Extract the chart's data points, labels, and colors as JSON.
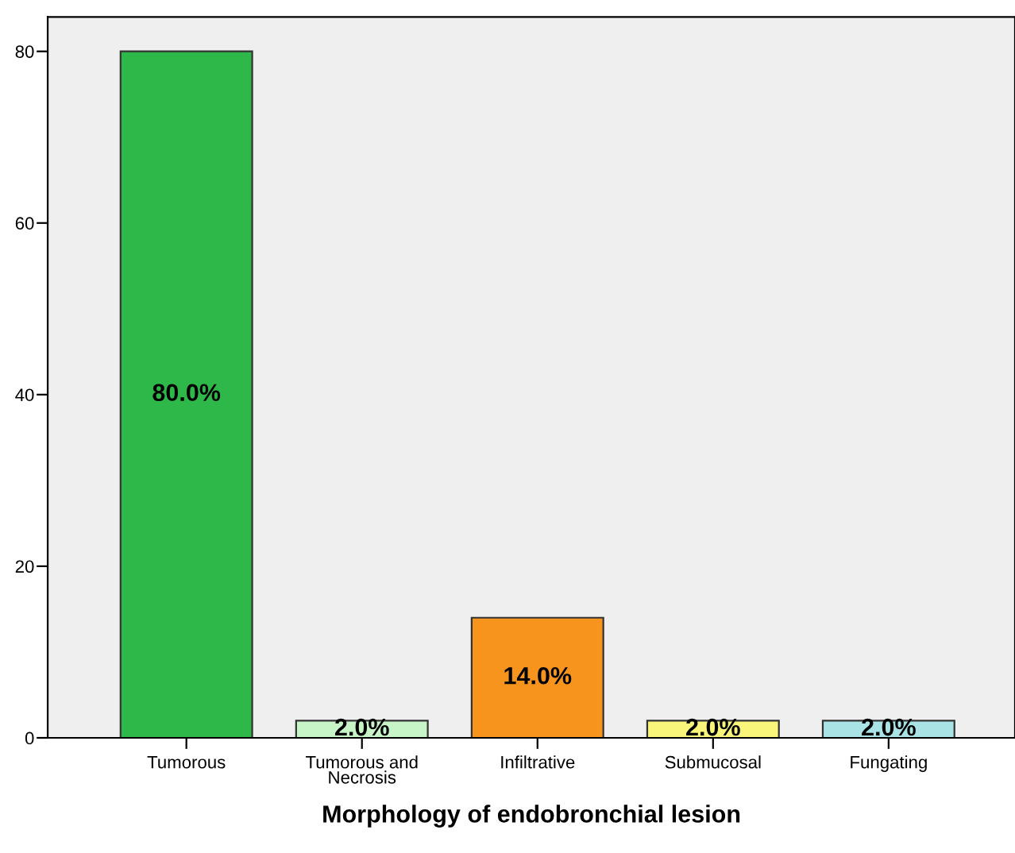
{
  "chart_data": {
    "type": "bar",
    "xlabel": "Morphology of endobronchial lesion",
    "categories": [
      "Tumorous",
      "Tumorous and\nNecrosis",
      "Infiltrative",
      "Submucosal",
      "Fungating"
    ],
    "values": [
      80,
      2,
      14,
      2,
      2
    ],
    "colors": [
      "#2eb84a",
      "#c8f5c8",
      "#f7941d",
      "#f8f57a",
      "#a9e3e6"
    ],
    "value_labels": [
      "80.0%",
      "2.0%",
      "14.0%",
      "2.0%",
      "2.0%"
    ],
    "ylim": [
      0,
      84
    ],
    "yticks": [
      0,
      20,
      40,
      60,
      80
    ],
    "grid": false,
    "legend": false
  }
}
